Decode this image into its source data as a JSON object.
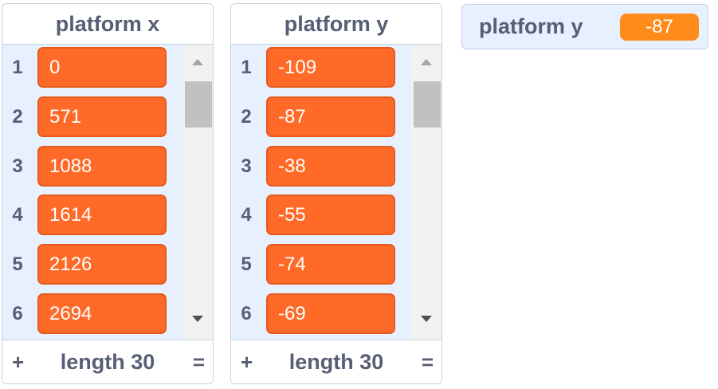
{
  "list_x": {
    "title": "platform x",
    "items": [
      {
        "index": "1",
        "value": "0"
      },
      {
        "index": "2",
        "value": "571"
      },
      {
        "index": "3",
        "value": "1088"
      },
      {
        "index": "4",
        "value": "1614"
      },
      {
        "index": "5",
        "value": "2126"
      },
      {
        "index": "6",
        "value": "2694"
      }
    ],
    "footer": {
      "add_label": "+",
      "length_label": "length 30",
      "resize_label": "="
    }
  },
  "list_y": {
    "title": "platform y",
    "items": [
      {
        "index": "1",
        "value": "-109"
      },
      {
        "index": "2",
        "value": "-87"
      },
      {
        "index": "3",
        "value": "-38"
      },
      {
        "index": "4",
        "value": "-55"
      },
      {
        "index": "5",
        "value": "-74"
      },
      {
        "index": "6",
        "value": "-69"
      }
    ],
    "footer": {
      "add_label": "+",
      "length_label": "length 30",
      "resize_label": "="
    }
  },
  "variable": {
    "label": "platform y",
    "value": "-87"
  },
  "colors": {
    "panel_background": "#e6f0ff",
    "panel_border": "#c6d1e2",
    "list_item": "#ff6a28",
    "variable_value": "#ff8c1a",
    "text": "#575e75"
  },
  "icons": {
    "scroll_up": "triangle-up",
    "scroll_down": "triangle-down"
  }
}
